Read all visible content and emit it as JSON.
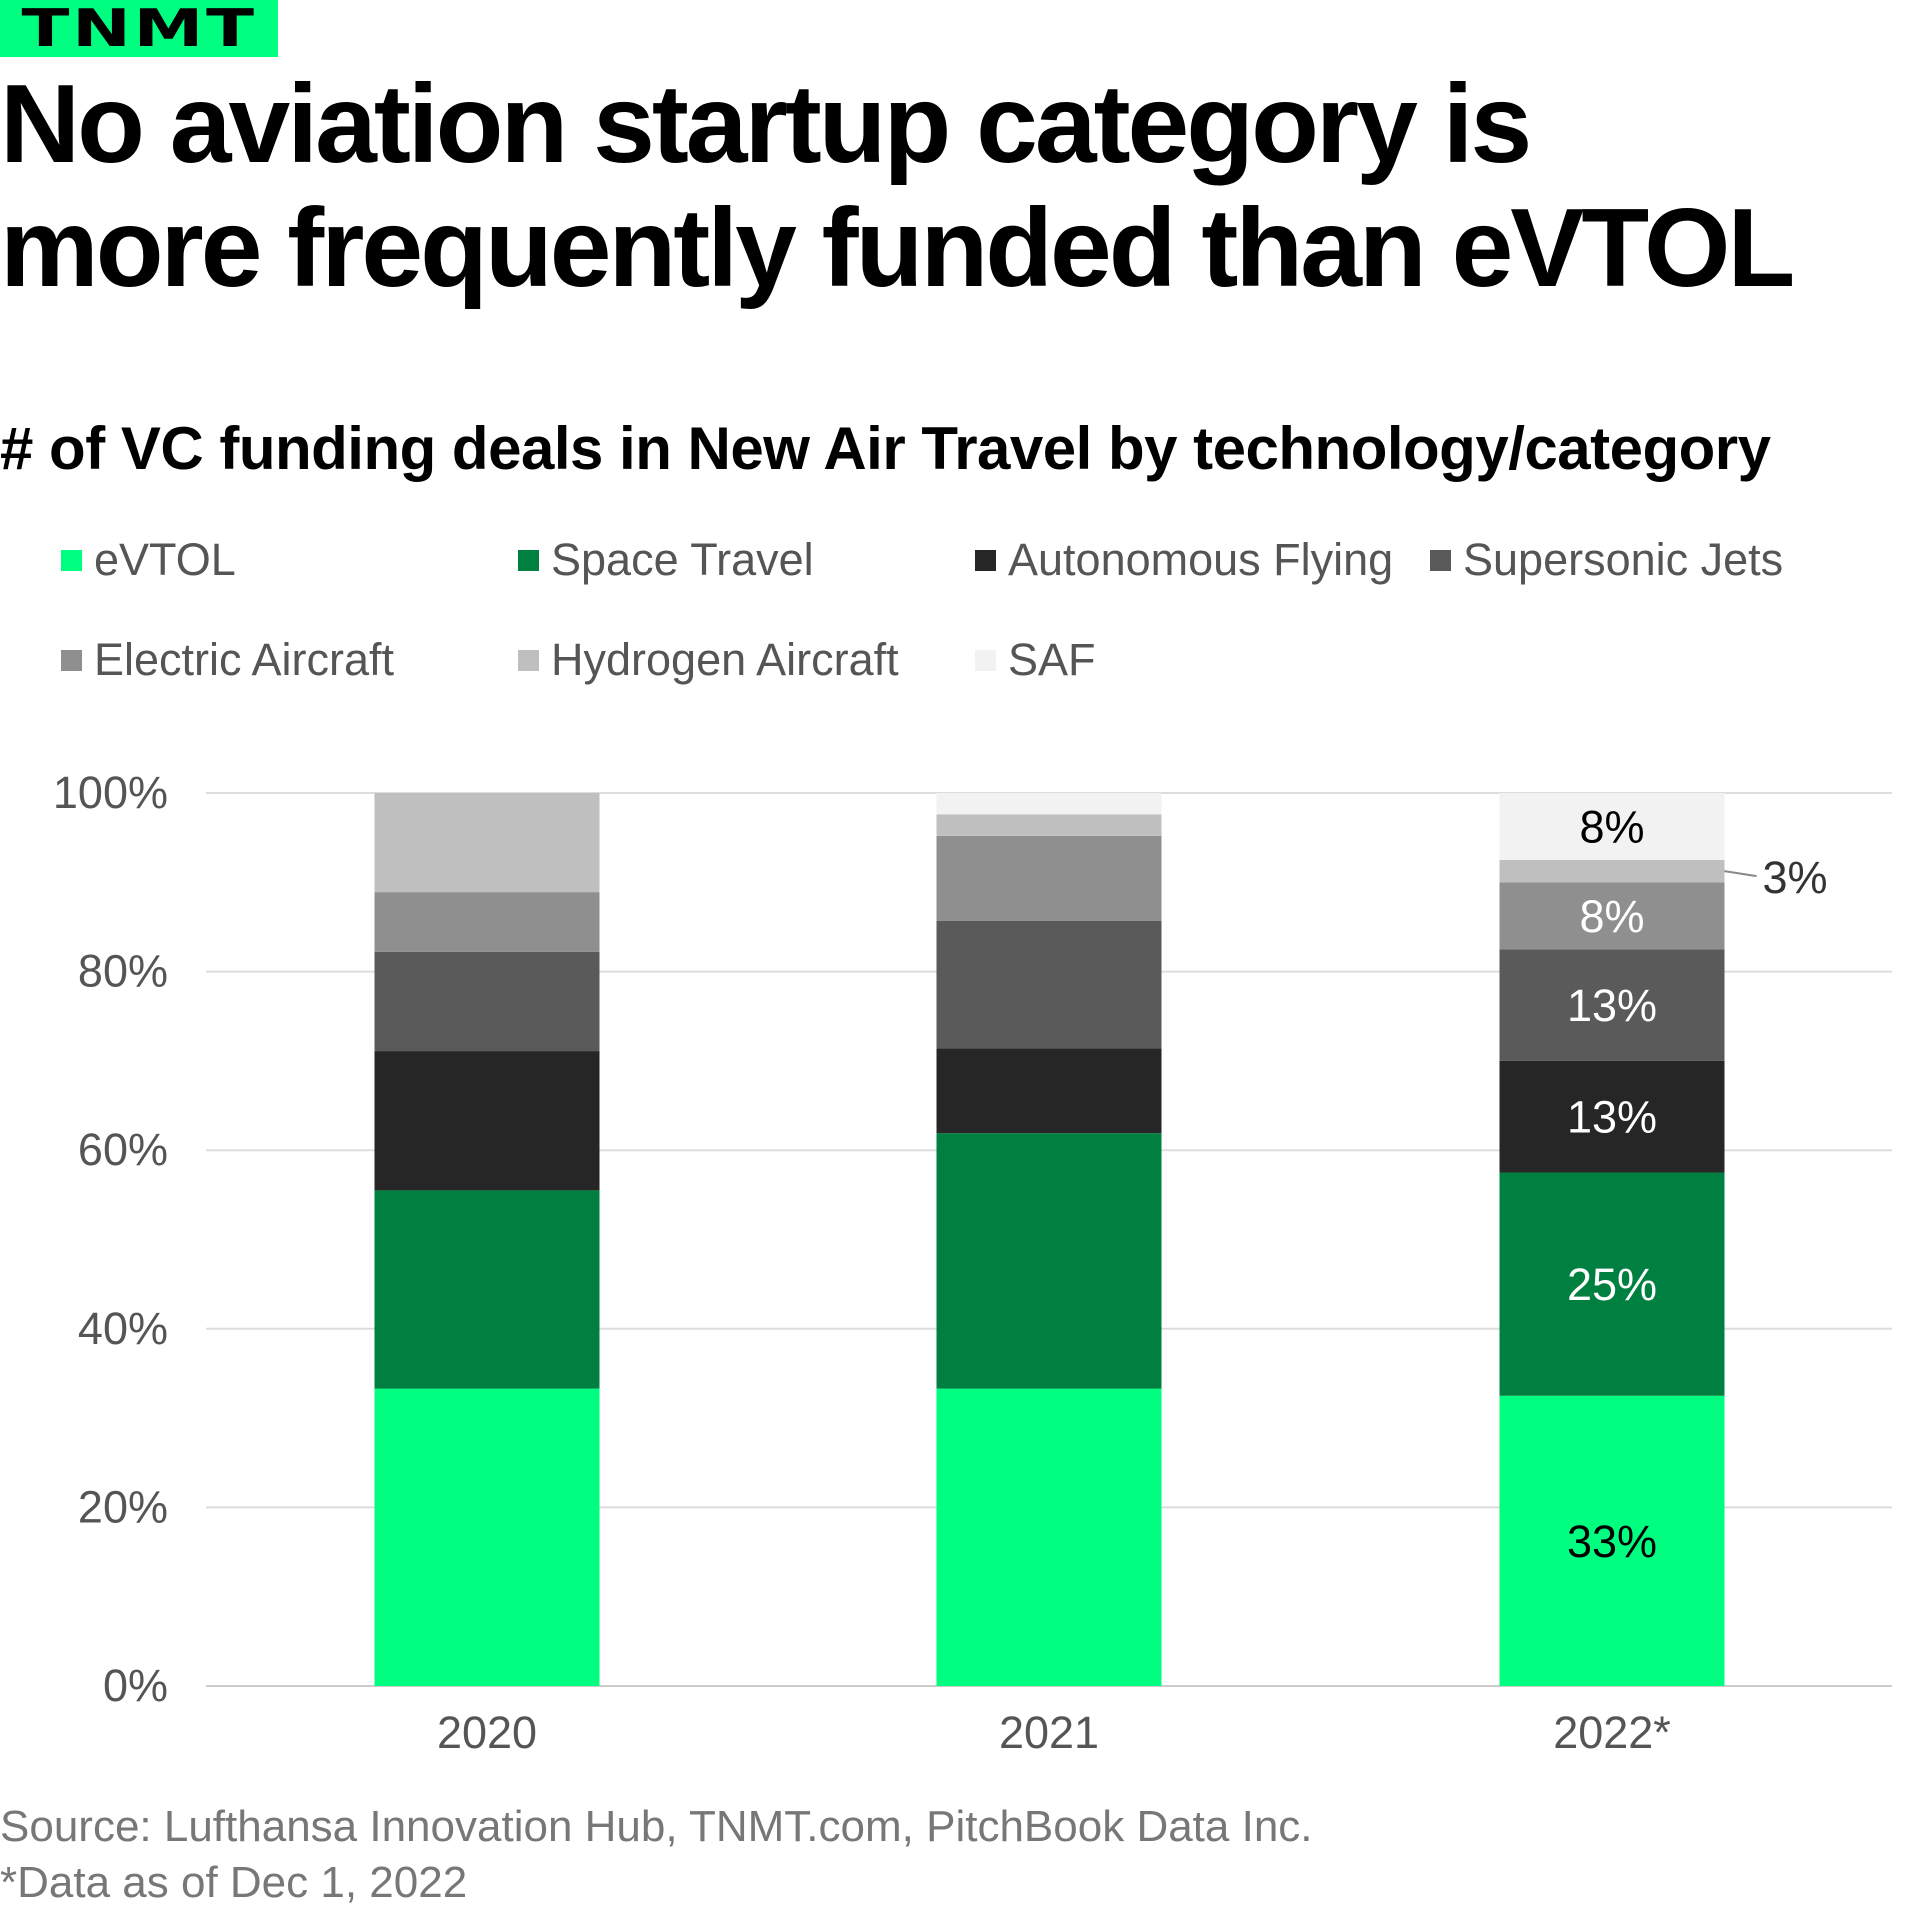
{
  "logo": "TNMT",
  "title_lines": [
    "No aviation startup category is",
    "more frequently funded than eVTOL"
  ],
  "subtitle": "# of VC funding deals in New Air Travel by technology/category",
  "source": "Source: Lufthansa Innovation Hub, TNMT.com, PitchBook Data Inc.",
  "footnote": "*Data as of Dec 1, 2022",
  "chart_data": {
    "type": "bar",
    "stacked": true,
    "title": "# of VC funding deals in New Air Travel by technology/category",
    "categories": [
      "2020",
      "2021",
      "2022*"
    ],
    "ylim": [
      0,
      100
    ],
    "y_ticks": [
      "0%",
      "20%",
      "40%",
      "60%",
      "80%",
      "100%"
    ],
    "y_tick_values": [
      0,
      20,
      40,
      60,
      80,
      100
    ],
    "grid": true,
    "legend_position": "top-left",
    "series": [
      {
        "name": "eVTOL",
        "color": "#00ff80",
        "values": [
          33.3,
          33.3,
          32.5
        ],
        "labels": [
          "",
          "",
          "33%"
        ],
        "label_color": "#000000"
      },
      {
        "name": "Space Travel",
        "color": "#008040",
        "values": [
          22.2,
          28.6,
          25.0
        ],
        "labels": [
          "",
          "",
          "25%"
        ],
        "label_color": "#ffffff"
      },
      {
        "name": "Autonomous Flying",
        "color": "#262626",
        "values": [
          15.6,
          9.5,
          12.5
        ],
        "labels": [
          "",
          "",
          "13%"
        ],
        "label_color": "#ffffff"
      },
      {
        "name": "Supersonic Jets",
        "color": "#5a5a5a",
        "values": [
          11.1,
          14.3,
          12.5
        ],
        "labels": [
          "",
          "",
          "13%"
        ],
        "label_color": "#ffffff"
      },
      {
        "name": "Electric Aircraft",
        "color": "#8f8f8f",
        "values": [
          6.7,
          9.5,
          7.5
        ],
        "labels": [
          "",
          "",
          "8%"
        ],
        "label_color": "#ffffff"
      },
      {
        "name": "Hydrogen Aircraft",
        "color": "#bfbfbf",
        "values": [
          11.1,
          2.4,
          2.5
        ],
        "labels": [
          "",
          "",
          "3%"
        ],
        "label_color": "#333333",
        "label_outside": true
      },
      {
        "name": "SAF",
        "color": "#f2f2f2",
        "values": [
          0,
          2.4,
          7.5
        ],
        "labels": [
          "",
          "",
          "8%"
        ],
        "label_color": "#000000"
      }
    ]
  }
}
